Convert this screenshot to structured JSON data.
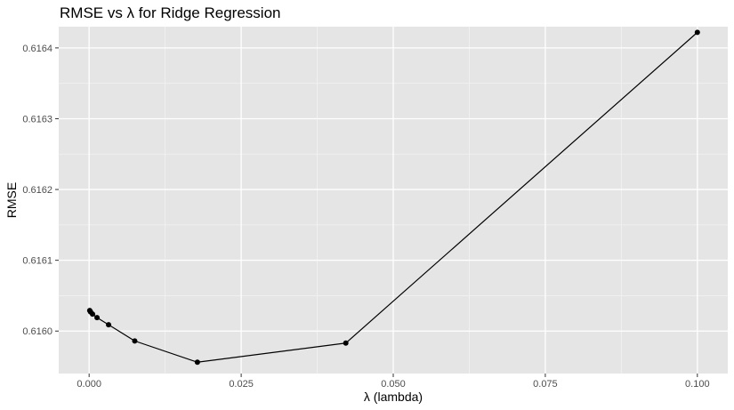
{
  "chart_data": {
    "type": "line",
    "title": "RMSE vs λ for Ridge Regression",
    "xlabel": "λ (lambda)",
    "ylabel": "RMSE",
    "xlim": [
      -0.005,
      0.105
    ],
    "ylim": [
      0.61594,
      0.61643
    ],
    "x_ticks": [
      0.0,
      0.025,
      0.05,
      0.075,
      0.1
    ],
    "x_tick_labels": [
      "0.000",
      "0.025",
      "0.050",
      "0.075",
      "0.100"
    ],
    "y_ticks": [
      0.616,
      0.6161,
      0.6162,
      0.6163,
      0.6164
    ],
    "y_tick_labels": [
      "0.6160",
      "0.6161",
      "0.6162",
      "0.6163",
      "0.6164"
    ],
    "grid": true,
    "legend": "none",
    "colors": {
      "panel_background": "#e5e5e5",
      "grid_major": "#ffffff",
      "line": "#000000",
      "points": "#000000"
    },
    "series": [
      {
        "x": [
          0.0001,
          0.00024,
          0.00056,
          0.0013,
          0.0032,
          0.0075,
          0.0178,
          0.0422,
          0.1
        ],
        "y": [
          0.616029,
          0.616027,
          0.616024,
          0.616019,
          0.616009,
          0.615986,
          0.615956,
          0.615983,
          0.616422
        ]
      }
    ]
  }
}
